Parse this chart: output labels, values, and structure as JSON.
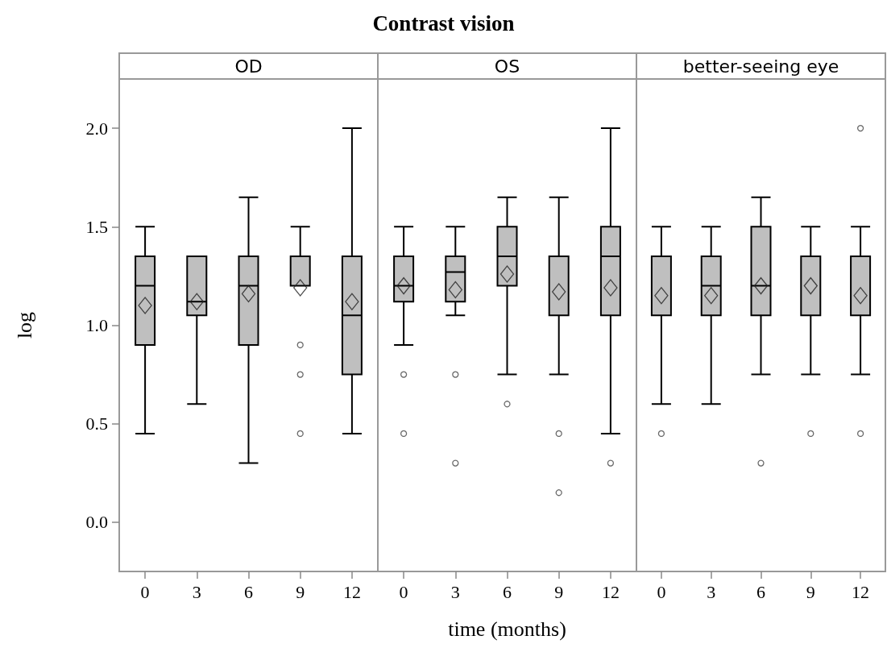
{
  "chart_data": [
    {
      "type": "box",
      "subtitle": "OD",
      "ylabel": "log",
      "categories": [
        "0",
        "3",
        "6",
        "9",
        "12"
      ],
      "color": "#bfbfbf",
      "ylim": [
        -0.25,
        2.25
      ],
      "yticks": [
        {
          "value": 0,
          "label": "0.0"
        },
        {
          "value": 0.5,
          "label": "0.5"
        },
        {
          "value": 1,
          "label": "1.0"
        },
        {
          "value": 1.5,
          "label": "1.5"
        },
        {
          "value": 2,
          "label": "2.0"
        }
      ],
      "grid": false,
      "boxes": [
        {
          "low": 0.45,
          "q1": 0.9,
          "median": 1.2,
          "q3": 1.35,
          "high": 1.5,
          "mean": 1.1
        },
        {
          "low": 0.6,
          "q1": 1.05,
          "median": 1.12,
          "q3": 1.35,
          "high": 1.35,
          "mean": 1.12
        },
        {
          "low": 0.3,
          "q1": 0.9,
          "median": 1.2,
          "q3": 1.35,
          "high": 1.65,
          "mean": 1.16
        },
        {
          "low": 1.2,
          "q1": 1.2,
          "median": 1.2,
          "q3": 1.35,
          "high": 1.5,
          "mean": 1.19,
          "outliers": [
            0.9,
            0.75,
            0.45
          ]
        },
        {
          "low": 0.45,
          "q1": 0.75,
          "median": 1.05,
          "q3": 1.35,
          "high": 2.0,
          "mean": 1.12
        }
      ]
    },
    {
      "type": "box",
      "title": "Contrast vision",
      "subtitle": "OS",
      "xlabel": "time (months)",
      "categories": [
        "0",
        "3",
        "6",
        "9",
        "12"
      ],
      "color": "#bfbfbf",
      "ylim": [
        -0.25,
        2.25
      ],
      "grid": false,
      "tick_labels": "x",
      "boxes": [
        {
          "low": 0.9,
          "q1": 1.12,
          "median": 1.2,
          "q3": 1.35,
          "high": 1.5,
          "mean": 1.2,
          "outliers": [
            0.75,
            0.45
          ]
        },
        {
          "low": 1.05,
          "q1": 1.12,
          "median": 1.27,
          "q3": 1.35,
          "high": 1.5,
          "mean": 1.18,
          "outliers": [
            0.75,
            0.3
          ]
        },
        {
          "low": 0.75,
          "q1": 1.2,
          "median": 1.35,
          "q3": 1.5,
          "high": 1.65,
          "mean": 1.26,
          "outliers": [
            0.6
          ]
        },
        {
          "low": 0.75,
          "q1": 1.05,
          "median": 1.35,
          "q3": 1.35,
          "high": 1.65,
          "mean": 1.17,
          "outliers": [
            0.45,
            0.15
          ]
        },
        {
          "low": 0.45,
          "q1": 1.05,
          "median": 1.35,
          "q3": 1.5,
          "high": 2.0,
          "mean": 1.19,
          "outliers": [
            0.3
          ]
        }
      ]
    },
    {
      "type": "box",
      "subtitle": "better-seeing eye",
      "categories": [
        "0",
        "3",
        "6",
        "9",
        "12"
      ],
      "color": "#bfbfbf",
      "ylim": [
        -0.25,
        2.25
      ],
      "grid": false,
      "tick_labels": "x",
      "boxes": [
        {
          "low": 0.6,
          "q1": 1.05,
          "median": 1.05,
          "q3": 1.35,
          "high": 1.5,
          "mean": 1.15,
          "outliers": [
            0.45
          ]
        },
        {
          "low": 0.6,
          "q1": 1.05,
          "median": 1.2,
          "q3": 1.35,
          "high": 1.5,
          "mean": 1.15
        },
        {
          "low": 0.75,
          "q1": 1.05,
          "median": 1.2,
          "q3": 1.5,
          "high": 1.65,
          "mean": 1.2,
          "outliers": [
            0.3
          ]
        },
        {
          "low": 0.75,
          "q1": 1.05,
          "median": 1.05,
          "q3": 1.35,
          "high": 1.5,
          "mean": 1.2,
          "outliers": [
            0.45
          ]
        },
        {
          "low": 0.75,
          "q1": 1.05,
          "median": 1.05,
          "q3": 1.35,
          "high": 1.5,
          "mean": 1.15,
          "outliers": [
            2.0,
            0.45
          ]
        }
      ]
    }
  ]
}
